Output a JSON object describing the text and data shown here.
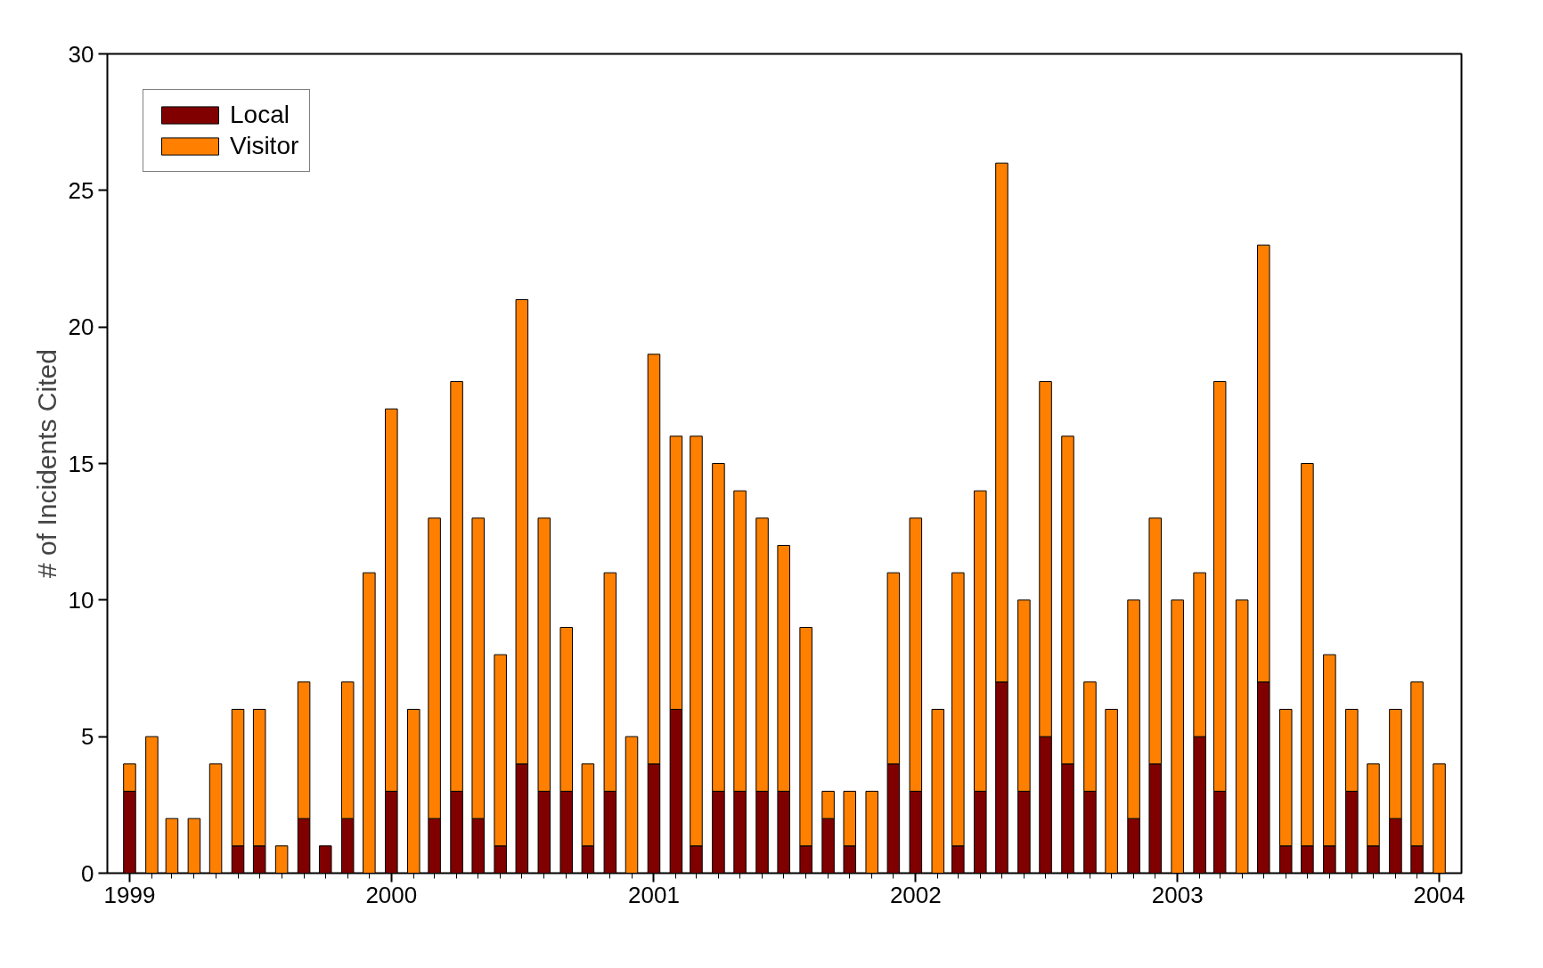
{
  "chart_data": {
    "type": "bar",
    "stacked": true,
    "ylabel": "# of Incidents Cited",
    "x": [
      "1999-01",
      "1999-02",
      "1999-03",
      "1999-04",
      "1999-05",
      "1999-06",
      "1999-07",
      "1999-08",
      "1999-09",
      "1999-10",
      "1999-11",
      "1999-12",
      "2000-01",
      "2000-02",
      "2000-03",
      "2000-04",
      "2000-05",
      "2000-06",
      "2000-07",
      "2000-08",
      "2000-09",
      "2000-10",
      "2000-11",
      "2000-12",
      "2001-01",
      "2001-02",
      "2001-03",
      "2001-04",
      "2001-05",
      "2001-06",
      "2001-07",
      "2001-08",
      "2001-09",
      "2001-10",
      "2001-11",
      "2001-12",
      "2002-01",
      "2002-02",
      "2002-03",
      "2002-04",
      "2002-05",
      "2002-06",
      "2002-07",
      "2002-08",
      "2002-09",
      "2002-10",
      "2002-11",
      "2002-12",
      "2003-01",
      "2003-02",
      "2003-03",
      "2003-04",
      "2003-05",
      "2003-06",
      "2003-07",
      "2003-08",
      "2003-09",
      "2003-10",
      "2003-11",
      "2003-12",
      "2004-01"
    ],
    "series": [
      {
        "name": "Local",
        "color": "#800000",
        "values": [
          3,
          0,
          0,
          0,
          0,
          1,
          1,
          0,
          2,
          1,
          2,
          0,
          3,
          0,
          2,
          3,
          2,
          1,
          4,
          3,
          3,
          1,
          3,
          0,
          4,
          6,
          1,
          3,
          3,
          3,
          3,
          1,
          2,
          1,
          0,
          4,
          3,
          0,
          1,
          3,
          7,
          3,
          5,
          4,
          3,
          0,
          2,
          4,
          0,
          5,
          3,
          0,
          7,
          1,
          1,
          1,
          3,
          1,
          2,
          1,
          0
        ]
      },
      {
        "name": "Visitor",
        "color": "#ff8000",
        "values": [
          1,
          5,
          2,
          2,
          4,
          5,
          5,
          1,
          5,
          0,
          5,
          11,
          14,
          6,
          11,
          15,
          11,
          7,
          17,
          10,
          6,
          3,
          8,
          5,
          15,
          10,
          15,
          12,
          11,
          10,
          9,
          8,
          1,
          2,
          3,
          7,
          10,
          6,
          10,
          11,
          19,
          7,
          13,
          12,
          4,
          6,
          8,
          9,
          10,
          6,
          15,
          10,
          16,
          5,
          14,
          7,
          3,
          3,
          4,
          6,
          4
        ]
      }
    ],
    "xlim": [
      "1998-12-01",
      "2004-02-01"
    ],
    "xticks": [
      "1999",
      "2000",
      "2001",
      "2002",
      "2003",
      "2004"
    ],
    "ylim": [
      0,
      30
    ],
    "yticks": [
      0,
      5,
      10,
      15,
      20,
      25,
      30
    ],
    "grid": false,
    "legend": "top left"
  }
}
